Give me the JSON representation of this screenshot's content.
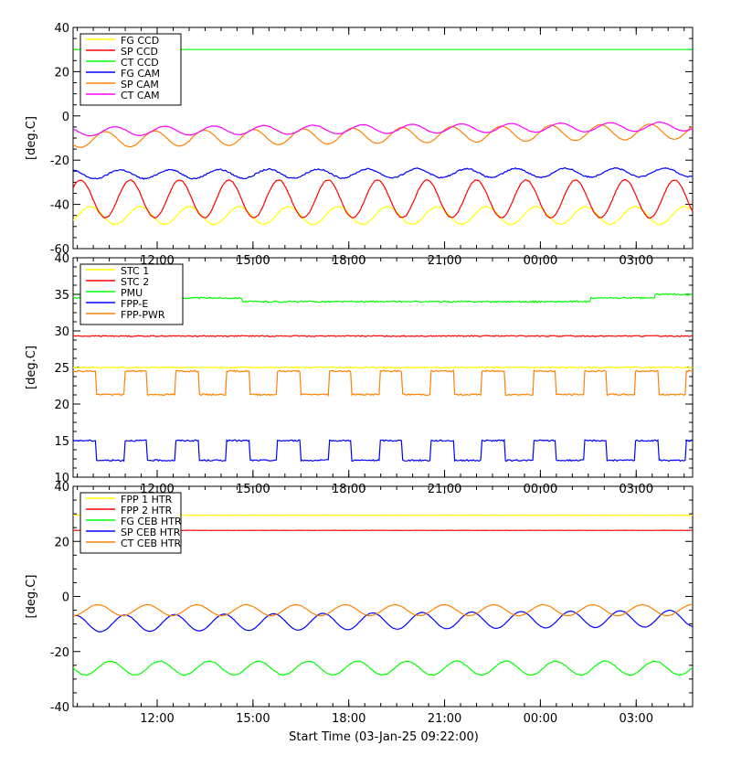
{
  "footer": {
    "xlabel": "Start Time (03-Jan-25 09:22:00)"
  },
  "x_ticks": [
    "12:00",
    "15:00",
    "18:00",
    "21:00",
    "00:00",
    "03:00"
  ],
  "chart_data": [
    {
      "type": "line",
      "ylabel": "[deg.C]",
      "ylim": [
        -60,
        40
      ],
      "yticks": [
        40,
        20,
        0,
        -20,
        -40,
        -60
      ],
      "xlim_hours": [
        0,
        19.4
      ],
      "legend_position": "top-left",
      "series": [
        {
          "name": "FG CCD",
          "color": "#ffff00",
          "mean": -45,
          "amp": 4,
          "period": 1.55,
          "phase": 0.9,
          "noise": 0.4
        },
        {
          "name": "SP CCD",
          "color": "#ff0000",
          "mean": -37.5,
          "amp": 8.5,
          "period": 1.55,
          "phase": 0.1,
          "noise": 0.4,
          "clip_low": -46
        },
        {
          "name": "CT CCD",
          "color": "#00ff00",
          "constant": 30
        },
        {
          "name": "FG CAM",
          "color": "#0000ff",
          "mean": -26,
          "amp": 2,
          "period": 1.55,
          "phase": 0.3,
          "noise": 0.6,
          "drift": 0.05
        },
        {
          "name": "SP CAM",
          "color": "#ff8000",
          "mean": -9,
          "amp": 3.5,
          "period": 1.55,
          "phase": 0.6,
          "noise": 0.2,
          "drift": 0.2
        },
        {
          "name": "CT CAM",
          "color": "#ff00ff",
          "mean": -6,
          "amp": 2,
          "period": 1.55,
          "phase": 0.4,
          "noise": 0.2,
          "drift": 0.12
        }
      ]
    },
    {
      "type": "line",
      "ylabel": "[deg.C]",
      "ylim": [
        10,
        40
      ],
      "yticks": [
        40,
        35,
        30,
        25,
        20,
        15,
        10
      ],
      "xlim_hours": [
        0,
        19.4
      ],
      "legend_position": "top-left",
      "series": [
        {
          "name": "STC 1",
          "color": "#ffff00",
          "constant": 25,
          "noise": 0.2
        },
        {
          "name": "STC 2",
          "color": "#ff0000",
          "constant": 29.3,
          "noise": 0.15
        },
        {
          "name": "PMU",
          "color": "#00ff00",
          "steps": [
            [
              0,
              34.5
            ],
            [
              5.3,
              34
            ],
            [
              16.2,
              34.5
            ],
            [
              18.2,
              35
            ]
          ],
          "noise": 0.2
        },
        {
          "name": "FPP-E",
          "color": "#0000ff",
          "square": [
            12.3,
            15
          ],
          "period": 1.6,
          "noise": 0.2
        },
        {
          "name": "FPP-PWR",
          "color": "#ff8000",
          "square": [
            21.3,
            24.5
          ],
          "period": 1.6,
          "noise": 0.2
        }
      ]
    },
    {
      "type": "line",
      "ylabel": "[deg.C]",
      "ylim": [
        -40,
        40
      ],
      "yticks": [
        40,
        20,
        0,
        -20,
        -40
      ],
      "xlim_hours": [
        0,
        19.4
      ],
      "legend_position": "top-left",
      "series": [
        {
          "name": "FPP 1 HTR",
          "color": "#ffff00",
          "constant": 29.5,
          "noise": 0.2
        },
        {
          "name": "FPP 2 HTR",
          "color": "#ff0000",
          "constant": 24,
          "noise": 0.1
        },
        {
          "name": "FG CEB HTR",
          "color": "#00ff00",
          "mean": -26,
          "amp": 2.5,
          "period": 1.55,
          "phase": 0.5,
          "noise": 0.3
        },
        {
          "name": "SP CEB HTR",
          "color": "#0000ff",
          "mean": -9,
          "amp": 3,
          "period": 1.55,
          "phase": 0.2,
          "noise": 0.1,
          "drift": 0.1
        },
        {
          "name": "CT CEB HTR",
          "color": "#ff8000",
          "mean": -5,
          "amp": 2,
          "period": 1.55,
          "phase": 0.75,
          "noise": 0.1
        }
      ]
    }
  ]
}
